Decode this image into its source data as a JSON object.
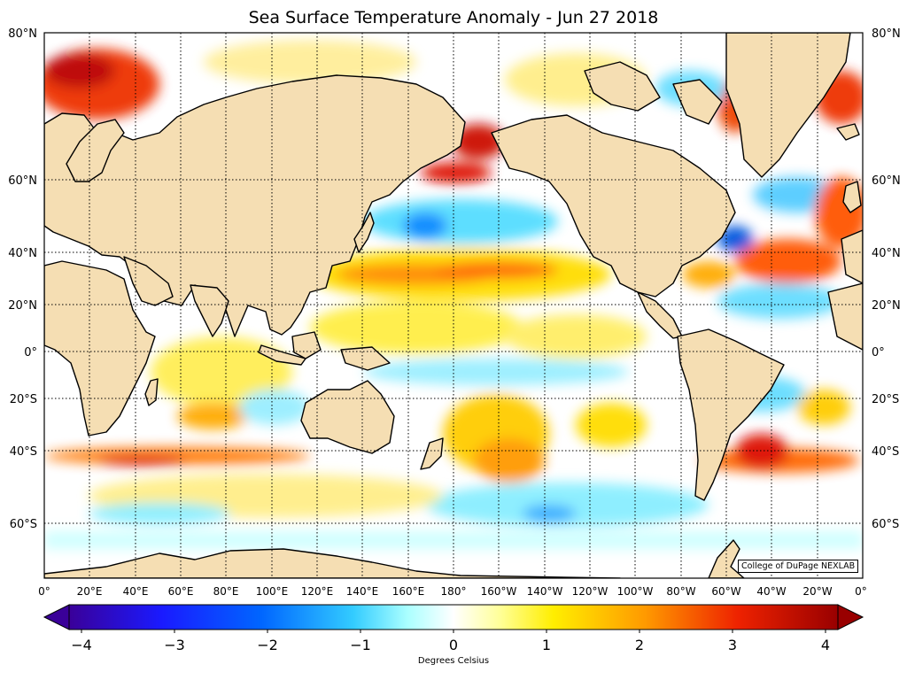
{
  "title": "Sea Surface Temperature Anomaly - Jun 27 2018",
  "credit": "College of DuPage NEXLAB",
  "lat_labels": [
    "80°N",
    "60°N",
    "40°N",
    "20°N",
    "0°",
    "20°S",
    "40°S",
    "60°S"
  ],
  "lon_labels": [
    "0°",
    "20°E",
    "40°E",
    "60°E",
    "80°E",
    "100°E",
    "120°E",
    "140°E",
    "160°E",
    "180°",
    "160°W",
    "140°W",
    "120°W",
    "100°W",
    "80°W",
    "60°W",
    "40°W",
    "20°W",
    "0°"
  ],
  "colorbar": {
    "title": "Degrees Celsius",
    "ticks": [
      "−4",
      "−3",
      "−2",
      "−1",
      "0",
      "1",
      "2",
      "3",
      "4"
    ],
    "min": -4,
    "max": 4
  },
  "colors": {
    "land": "#f5deb3",
    "ocean_neutral": "#ffffff",
    "warm": [
      "#ffff66",
      "#ffcc00",
      "#ff8800",
      "#ee2200",
      "#aa0000"
    ],
    "cool": [
      "#88ffff",
      "#33ccff",
      "#0077ff",
      "#2222cc",
      "#440099"
    ]
  }
}
